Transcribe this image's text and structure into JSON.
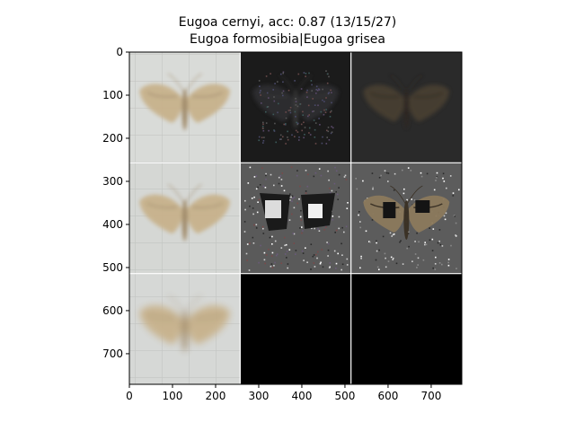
{
  "figure": {
    "title_line1": "Eugoa cernyi, acc: 0.87 (13/15/27)",
    "title_line2": "Eugoa formosibia|Eugoa grisea"
  },
  "axes": {
    "x_ticks": [
      "0",
      "100",
      "200",
      "300",
      "400",
      "500",
      "600",
      "700"
    ],
    "y_ticks": [
      "0",
      "100",
      "200",
      "300",
      "400",
      "500",
      "600",
      "700"
    ]
  },
  "grid": {
    "rows": 3,
    "cols": 3,
    "cells": [
      {
        "row": 0,
        "col": 0,
        "kind": "moth-photo",
        "color": "#d9dbd8"
      },
      {
        "row": 0,
        "col": 1,
        "kind": "saliency-noisy",
        "color": "#1b1b1b"
      },
      {
        "row": 0,
        "col": 2,
        "kind": "saliency-overlay-dark",
        "color": "#2a2a2a"
      },
      {
        "row": 1,
        "col": 0,
        "kind": "moth-photo",
        "color": "#d5d7d4"
      },
      {
        "row": 1,
        "col": 1,
        "kind": "occlusion-map",
        "color": "#5a5a5a"
      },
      {
        "row": 1,
        "col": 2,
        "kind": "occlusion-overlay",
        "color": "#5c5c5c"
      },
      {
        "row": 2,
        "col": 0,
        "kind": "moth-photo-blurred",
        "color": "#d6d8d6"
      },
      {
        "row": 2,
        "col": 1,
        "kind": "empty-black",
        "color": "#000000"
      },
      {
        "row": 2,
        "col": 2,
        "kind": "empty-black",
        "color": "#000000"
      }
    ]
  },
  "colors": {
    "moth_wing": "#c8b28c",
    "moth_wing_dark": "#9f8866",
    "separator": "#ffffff"
  }
}
